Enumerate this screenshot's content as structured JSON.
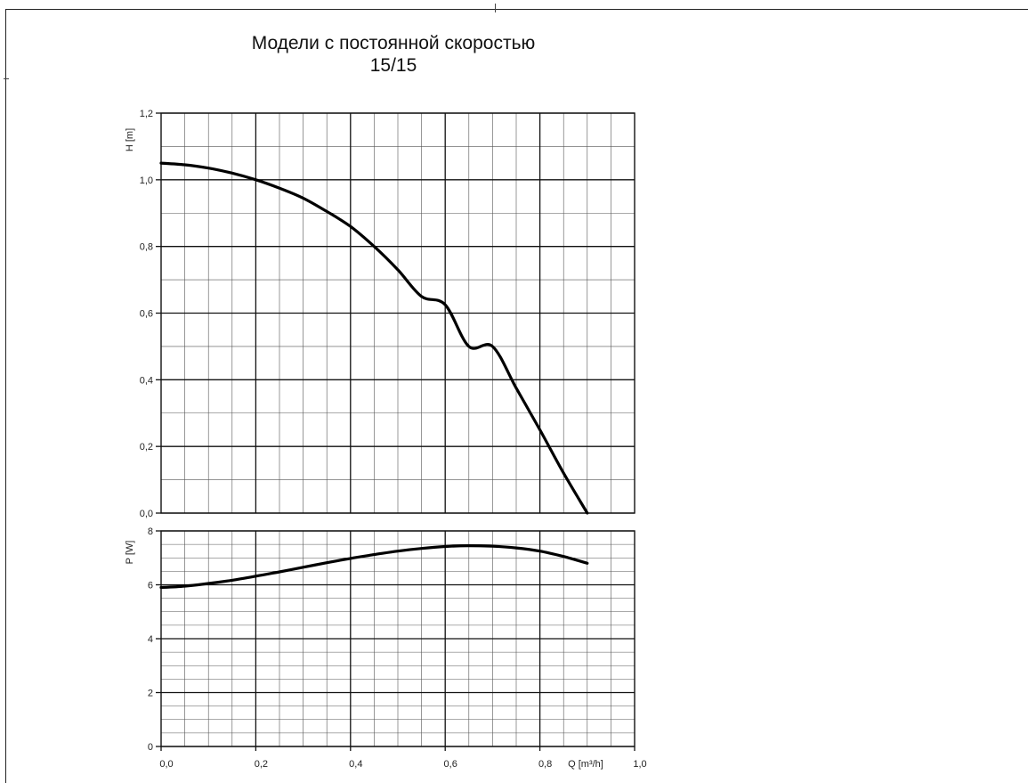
{
  "title": "Модели с постоянной скоростью",
  "subtitle": "15/15",
  "chart_data": [
    {
      "type": "line",
      "ylabel": "H [m]",
      "xlim": [
        0,
        1.0
      ],
      "ylim": [
        0,
        1.2
      ],
      "yticks": [
        "0,0",
        "0,2",
        "0,4",
        "0,6",
        "0,8",
        "1,0",
        "1,2"
      ],
      "grid": true,
      "series": [
        {
          "x": [
            0,
            0.05,
            0.1,
            0.15,
            0.2,
            0.25,
            0.3,
            0.35,
            0.4,
            0.45,
            0.5,
            0.55,
            0.6,
            0.65,
            0.7,
            0.75,
            0.8,
            0.85,
            0.9
          ],
          "values": [
            1.05,
            1.045,
            1.035,
            1.02,
            1.0,
            0.975,
            0.945,
            0.905,
            0.86,
            0.8,
            0.73,
            0.65,
            0.625,
            0.5,
            0.5,
            0.375,
            0.25,
            0.12,
            0.0
          ]
        }
      ]
    },
    {
      "type": "line",
      "ylabel": "P [W]",
      "xlabel": "Q [m³/h]",
      "xlim": [
        0,
        1.0
      ],
      "ylim": [
        0,
        8
      ],
      "xticks": [
        "0,0",
        "0,2",
        "0,4",
        "0,6",
        "0,8",
        "1,0"
      ],
      "yticks": [
        "0",
        "2",
        "4",
        "6",
        "8"
      ],
      "grid": true,
      "series": [
        {
          "x": [
            0,
            0.05,
            0.1,
            0.15,
            0.2,
            0.25,
            0.3,
            0.35,
            0.4,
            0.45,
            0.5,
            0.55,
            0.6,
            0.65,
            0.7,
            0.75,
            0.8,
            0.85,
            0.9
          ],
          "values": [
            5.9,
            5.95,
            6.05,
            6.17,
            6.32,
            6.48,
            6.65,
            6.82,
            6.98,
            7.12,
            7.25,
            7.35,
            7.42,
            7.45,
            7.43,
            7.37,
            7.25,
            7.05,
            6.8
          ]
        }
      ]
    }
  ]
}
